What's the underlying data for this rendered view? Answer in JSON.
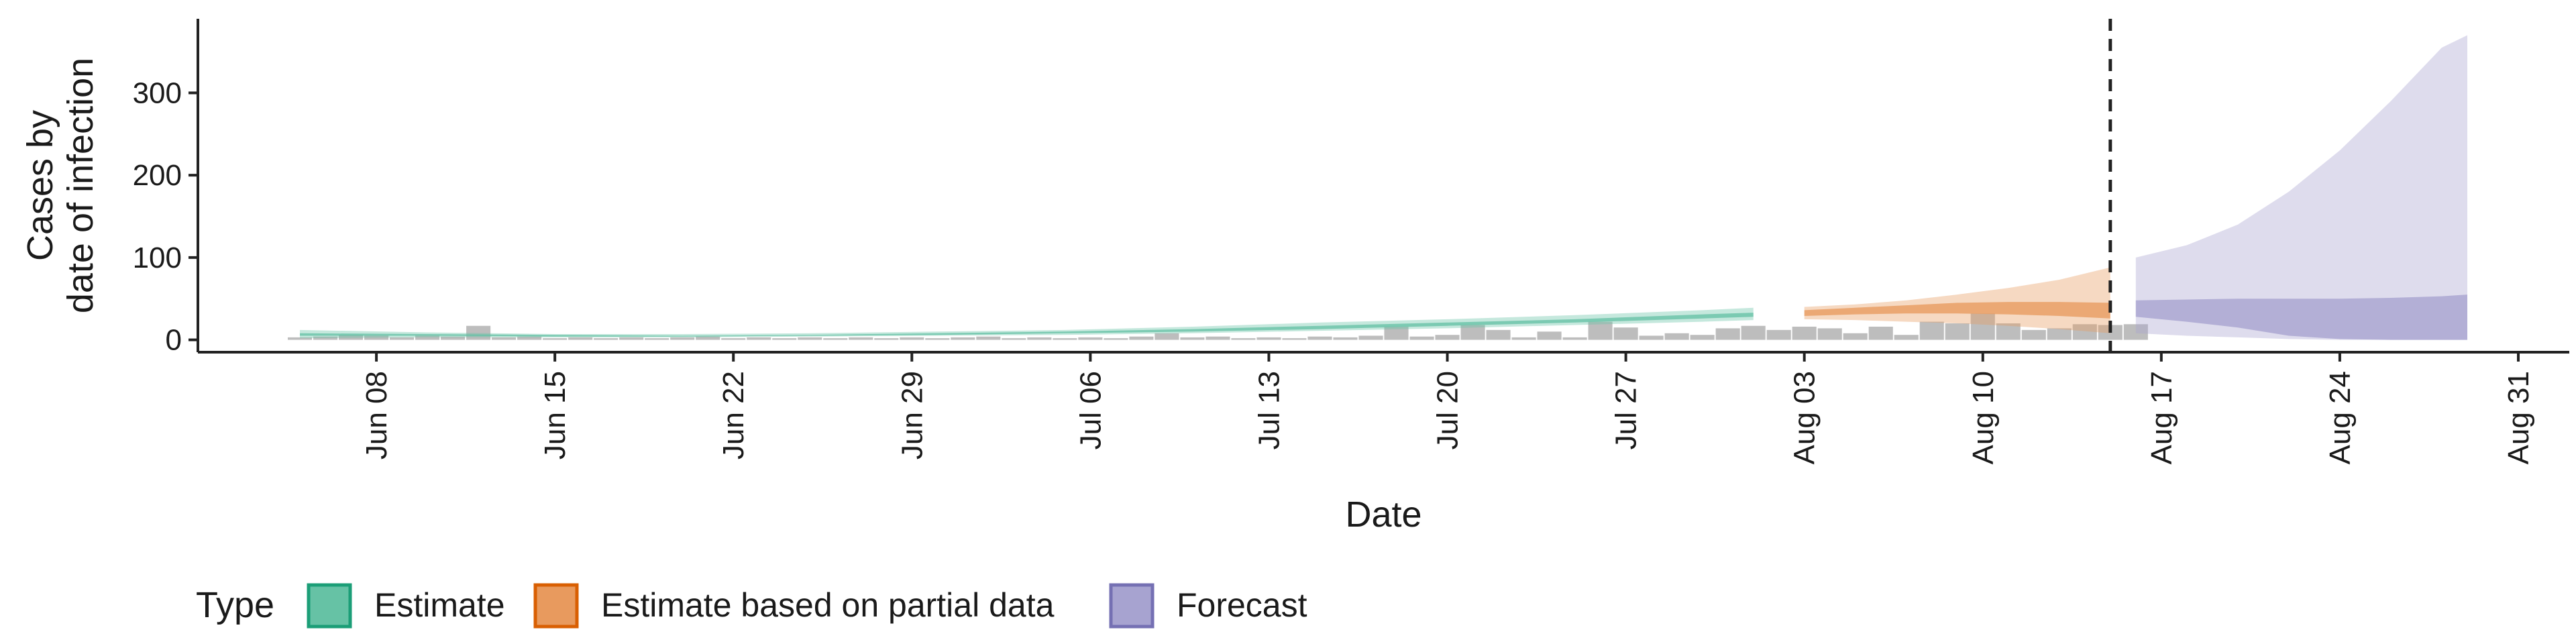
{
  "chart_data": {
    "type": "area",
    "title": "",
    "xlabel": "Date",
    "ylabel": [
      "Cases by",
      "date of infection"
    ],
    "x_range": [
      "2020-06-01",
      "2020-09-02"
    ],
    "ylim": [
      -15,
      390
    ],
    "y_ticks": [
      0,
      100,
      200,
      300
    ],
    "x_ticks": [
      {
        "date": "2020-06-08",
        "label": "Jun 08"
      },
      {
        "date": "2020-06-15",
        "label": "Jun 15"
      },
      {
        "date": "2020-06-22",
        "label": "Jun 22"
      },
      {
        "date": "2020-06-29",
        "label": "Jun 29"
      },
      {
        "date": "2020-07-06",
        "label": "Jul 06"
      },
      {
        "date": "2020-07-13",
        "label": "Jul 13"
      },
      {
        "date": "2020-07-20",
        "label": "Jul 20"
      },
      {
        "date": "2020-07-27",
        "label": "Jul 27"
      },
      {
        "date": "2020-08-03",
        "label": "Aug 03"
      },
      {
        "date": "2020-08-10",
        "label": "Aug 10"
      },
      {
        "date": "2020-08-17",
        "label": "Aug 17"
      },
      {
        "date": "2020-08-24",
        "label": "Aug 24"
      },
      {
        "date": "2020-08-31",
        "label": "Aug 31"
      }
    ],
    "vline_date": "2020-08-15",
    "grid": false,
    "legend": {
      "title": "Type",
      "position": "bottom",
      "entries": [
        {
          "label": "Estimate",
          "fill": "#66c2a5",
          "stroke": "#1b9e77"
        },
        {
          "label": "Estimate based on partial data",
          "fill": "#e89a5e",
          "stroke": "#d95f02"
        },
        {
          "label": "Forecast",
          "fill": "#a7a3d0",
          "stroke": "#7570b3"
        }
      ]
    },
    "observed_cases": {
      "color": "#bdbdbd",
      "points": [
        [
          "2020-06-05",
          3
        ],
        [
          "2020-06-06",
          4
        ],
        [
          "2020-06-07",
          6
        ],
        [
          "2020-06-08",
          5
        ],
        [
          "2020-06-09",
          3
        ],
        [
          "2020-06-10",
          5
        ],
        [
          "2020-06-11",
          4
        ],
        [
          "2020-06-12",
          17
        ],
        [
          "2020-06-13",
          3
        ],
        [
          "2020-06-14",
          4
        ],
        [
          "2020-06-15",
          2
        ],
        [
          "2020-06-16",
          3
        ],
        [
          "2020-06-17",
          2
        ],
        [
          "2020-06-18",
          3
        ],
        [
          "2020-06-19",
          2
        ],
        [
          "2020-06-20",
          3
        ],
        [
          "2020-06-21",
          4
        ],
        [
          "2020-06-22",
          2
        ],
        [
          "2020-06-23",
          3
        ],
        [
          "2020-06-24",
          2
        ],
        [
          "2020-06-25",
          3
        ],
        [
          "2020-06-26",
          2
        ],
        [
          "2020-06-27",
          3
        ],
        [
          "2020-06-28",
          2
        ],
        [
          "2020-06-29",
          3
        ],
        [
          "2020-06-30",
          2
        ],
        [
          "2020-07-01",
          3
        ],
        [
          "2020-07-02",
          4
        ],
        [
          "2020-07-03",
          2
        ],
        [
          "2020-07-04",
          3
        ],
        [
          "2020-07-05",
          2
        ],
        [
          "2020-07-06",
          3
        ],
        [
          "2020-07-07",
          2
        ],
        [
          "2020-07-08",
          4
        ],
        [
          "2020-07-09",
          8
        ],
        [
          "2020-07-10",
          3
        ],
        [
          "2020-07-11",
          4
        ],
        [
          "2020-07-12",
          2
        ],
        [
          "2020-07-13",
          3
        ],
        [
          "2020-07-14",
          2
        ],
        [
          "2020-07-15",
          4
        ],
        [
          "2020-07-16",
          3
        ],
        [
          "2020-07-17",
          5
        ],
        [
          "2020-07-18",
          16
        ],
        [
          "2020-07-19",
          4
        ],
        [
          "2020-07-20",
          6
        ],
        [
          "2020-07-21",
          18
        ],
        [
          "2020-07-22",
          12
        ],
        [
          "2020-07-23",
          3
        ],
        [
          "2020-07-24",
          10
        ],
        [
          "2020-07-25",
          3
        ],
        [
          "2020-07-26",
          22
        ],
        [
          "2020-07-27",
          15
        ],
        [
          "2020-07-28",
          5
        ],
        [
          "2020-07-29",
          8
        ],
        [
          "2020-07-30",
          6
        ],
        [
          "2020-07-31",
          14
        ],
        [
          "2020-08-01",
          17
        ],
        [
          "2020-08-02",
          12
        ],
        [
          "2020-08-03",
          16
        ],
        [
          "2020-08-04",
          14
        ],
        [
          "2020-08-05",
          8
        ],
        [
          "2020-08-06",
          16
        ],
        [
          "2020-08-07",
          6
        ],
        [
          "2020-08-08",
          22
        ],
        [
          "2020-08-09",
          20
        ],
        [
          "2020-08-10",
          32
        ],
        [
          "2020-08-11",
          20
        ],
        [
          "2020-08-12",
          12
        ],
        [
          "2020-08-13",
          14
        ],
        [
          "2020-08-14",
          19
        ],
        [
          "2020-08-15",
          18
        ],
        [
          "2020-08-16",
          19
        ]
      ]
    },
    "series": [
      {
        "name": "Estimate",
        "color": "#66c2a5",
        "outer_band": [
          [
            "2020-06-05",
            2,
            12
          ],
          [
            "2020-06-10",
            3,
            9
          ],
          [
            "2020-06-15",
            3,
            7
          ],
          [
            "2020-06-20",
            3,
            7
          ],
          [
            "2020-06-25",
            4,
            8
          ],
          [
            "2020-06-30",
            5,
            10
          ],
          [
            "2020-07-05",
            6,
            12
          ],
          [
            "2020-07-10",
            8,
            16
          ],
          [
            "2020-07-15",
            11,
            21
          ],
          [
            "2020-07-20",
            14,
            25
          ],
          [
            "2020-07-25",
            18,
            30
          ],
          [
            "2020-07-30",
            22,
            36
          ],
          [
            "2020-08-01",
            24,
            39
          ]
        ],
        "inner_band": [
          [
            "2020-06-05",
            5,
            8
          ],
          [
            "2020-06-10",
            5,
            7
          ],
          [
            "2020-06-15",
            4,
            6
          ],
          [
            "2020-06-20",
            4,
            5
          ],
          [
            "2020-06-25",
            5,
            6
          ],
          [
            "2020-06-30",
            6,
            8
          ],
          [
            "2020-07-05",
            8,
            10
          ],
          [
            "2020-07-10",
            10,
            13
          ],
          [
            "2020-07-15",
            13,
            17
          ],
          [
            "2020-07-20",
            17,
            21
          ],
          [
            "2020-07-25",
            21,
            25
          ],
          [
            "2020-07-30",
            26,
            31
          ],
          [
            "2020-08-01",
            28,
            33
          ]
        ]
      },
      {
        "name": "Estimate based on partial data",
        "color": "#e89a5e",
        "outer_band": [
          [
            "2020-08-03",
            25,
            40
          ],
          [
            "2020-08-05",
            24,
            43
          ],
          [
            "2020-08-07",
            22,
            48
          ],
          [
            "2020-08-09",
            20,
            55
          ],
          [
            "2020-08-11",
            17,
            63
          ],
          [
            "2020-08-13",
            13,
            73
          ],
          [
            "2020-08-15",
            8,
            88
          ]
        ],
        "inner_band": [
          [
            "2020-08-03",
            29,
            36
          ],
          [
            "2020-08-05",
            31,
            39
          ],
          [
            "2020-08-07",
            32,
            42
          ],
          [
            "2020-08-09",
            32,
            45
          ],
          [
            "2020-08-11",
            31,
            46
          ],
          [
            "2020-08-13",
            29,
            46
          ],
          [
            "2020-08-15",
            26,
            45
          ]
        ]
      },
      {
        "name": "Forecast",
        "color": "#a7a3d0",
        "outer_band": [
          [
            "2020-08-16",
            8,
            100
          ],
          [
            "2020-08-18",
            5,
            115
          ],
          [
            "2020-08-20",
            3,
            140
          ],
          [
            "2020-08-22",
            1,
            180
          ],
          [
            "2020-08-24",
            0,
            230
          ],
          [
            "2020-08-26",
            0,
            290
          ],
          [
            "2020-08-28",
            0,
            355
          ],
          [
            "2020-08-29",
            0,
            370
          ]
        ],
        "inner_band": [
          [
            "2020-08-16",
            28,
            48
          ],
          [
            "2020-08-18",
            22,
            49
          ],
          [
            "2020-08-20",
            15,
            50
          ],
          [
            "2020-08-22",
            5,
            50
          ],
          [
            "2020-08-24",
            1,
            50
          ],
          [
            "2020-08-26",
            0,
            51
          ],
          [
            "2020-08-28",
            0,
            53
          ],
          [
            "2020-08-29",
            0,
            55
          ]
        ]
      }
    ]
  }
}
